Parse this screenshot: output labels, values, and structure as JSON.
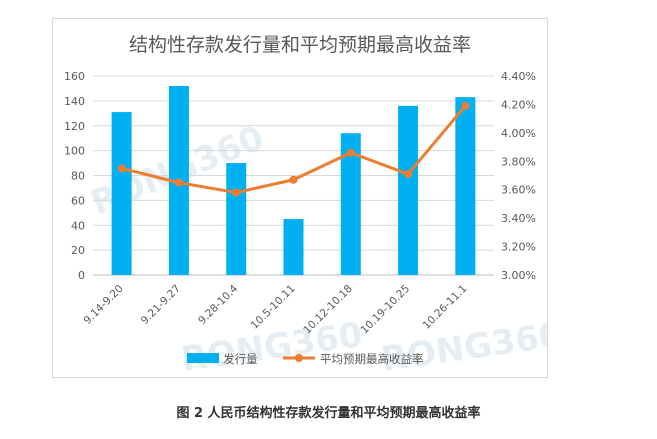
{
  "chart_data": {
    "type": "bar",
    "title": "结构性存款发行量和平均预期最高收益率",
    "categories": [
      "9.14-9.20",
      "9.21-9.27",
      "9.28-10.4",
      "10.5-10.11",
      "10.12-10.18",
      "10.19-10.25",
      "10.26-11.1"
    ],
    "series": [
      {
        "name": "发行量",
        "type": "bar",
        "axis": "left",
        "color": "#00b0f0",
        "values": [
          131,
          152,
          90,
          45,
          114,
          136,
          143
        ]
      },
      {
        "name": "平均预期最高收益率",
        "type": "line",
        "axis": "right",
        "color": "#ed7d31",
        "values": [
          3.75,
          3.65,
          3.58,
          3.67,
          3.86,
          3.71,
          4.19
        ]
      }
    ],
    "y_left": {
      "min": 0,
      "max": 160,
      "step": 20,
      "ticks": [
        "0",
        "20",
        "40",
        "60",
        "80",
        "100",
        "120",
        "140",
        "160"
      ]
    },
    "y_right": {
      "min": 3.0,
      "max": 4.4,
      "step": 0.2,
      "ticks": [
        "3.00%",
        "3.20%",
        "3.40%",
        "3.60%",
        "3.80%",
        "4.00%",
        "4.20%",
        "4.40%"
      ]
    },
    "grid": true,
    "legend_position": "bottom"
  },
  "caption": "图 2 人民币结构性存款发行量和平均预期最高收益率",
  "watermark": "RONG360"
}
